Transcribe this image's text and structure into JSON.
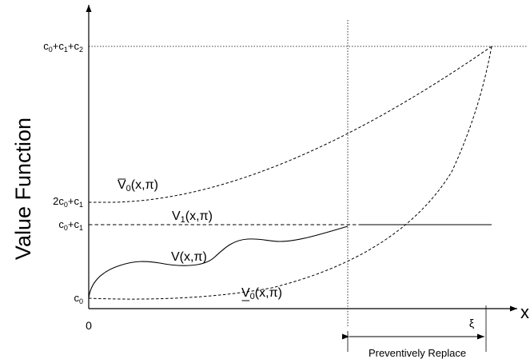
{
  "diagram": {
    "y_axis_title": "Value Function",
    "x_axis_symbol": "x",
    "origin_label": "0",
    "xi_label": "ξ",
    "region_label": "Preventively Replace",
    "y_ticks": {
      "c012": {
        "parts": [
          {
            "t": "c"
          },
          {
            "t": "0",
            "sub": true
          },
          {
            "t": "+c"
          },
          {
            "t": "1",
            "sub": true
          },
          {
            "t": "+c"
          },
          {
            "t": "2",
            "sub": true
          }
        ]
      },
      "two_c0_c1": {
        "parts": [
          {
            "t": "2c"
          },
          {
            "t": "0",
            "sub": true
          },
          {
            "t": "+c"
          },
          {
            "t": "1",
            "sub": true
          }
        ]
      },
      "c0_c1": {
        "parts": [
          {
            "t": "c"
          },
          {
            "t": "0",
            "sub": true
          },
          {
            "t": "+c"
          },
          {
            "t": "1",
            "sub": true
          }
        ]
      },
      "c0": {
        "parts": [
          {
            "t": "c"
          },
          {
            "t": "0",
            "sub": true
          }
        ]
      }
    },
    "curves": {
      "v_bar_0": {
        "parts": [
          {
            "t": "V"
          },
          {
            "t": "0",
            "sub": true
          },
          {
            "t": "(x,π)"
          }
        ],
        "accent": "bar"
      },
      "v_1": {
        "parts": [
          {
            "t": "V"
          },
          {
            "t": "1",
            "sub": true
          },
          {
            "t": "(x,π)"
          }
        ]
      },
      "v": {
        "parts": [
          {
            "t": "V(x,π)"
          }
        ]
      },
      "v_under_0": {
        "parts": [
          {
            "t": "V"
          },
          {
            "t": "0",
            "sub": true
          },
          {
            "t": "(x,π)"
          }
        ],
        "accent": "underline"
      }
    }
  }
}
